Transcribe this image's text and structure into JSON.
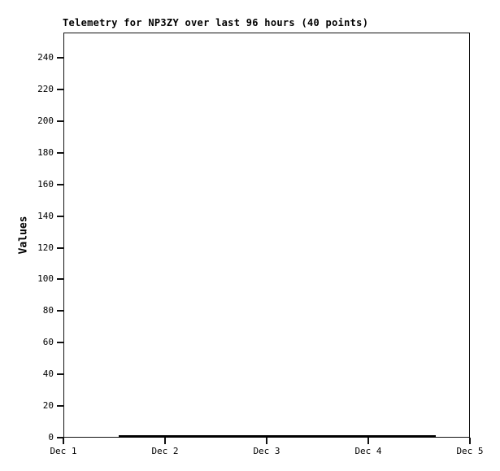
{
  "page": {
    "background_color": "#ffffff",
    "foreground_color": "#000000"
  },
  "chart_data": {
    "type": "line",
    "title": "Telemetry for NP3ZY over last 96 hours (40 points)",
    "xlabel": "",
    "ylabel": "Values",
    "x_tick_labels": [
      "Dec 1",
      "Dec 2",
      "Dec 3",
      "Dec 4",
      "Dec 5"
    ],
    "x_tick_hours": [
      0,
      24,
      48,
      72,
      96
    ],
    "x_range_hours": [
      0,
      96
    ],
    "y_ticks": [
      0,
      20,
      40,
      60,
      80,
      100,
      120,
      140,
      160,
      180,
      200,
      220,
      240
    ],
    "ylim": [
      0,
      256
    ],
    "grid": false,
    "legend": null,
    "series": [
      {
        "name": "telemetry-values",
        "color": "#000000",
        "points": 40,
        "x_start_hours": 13,
        "x_end_hours": 88,
        "values": [
          0,
          0,
          0,
          0,
          0,
          0,
          0,
          0,
          0,
          0,
          0,
          0,
          0,
          0,
          0,
          0,
          0,
          0,
          0,
          0,
          0,
          0,
          0,
          0,
          0,
          0,
          0,
          0,
          0,
          0,
          0,
          0,
          0,
          0,
          0,
          0,
          0,
          0,
          0,
          0
        ]
      }
    ]
  }
}
